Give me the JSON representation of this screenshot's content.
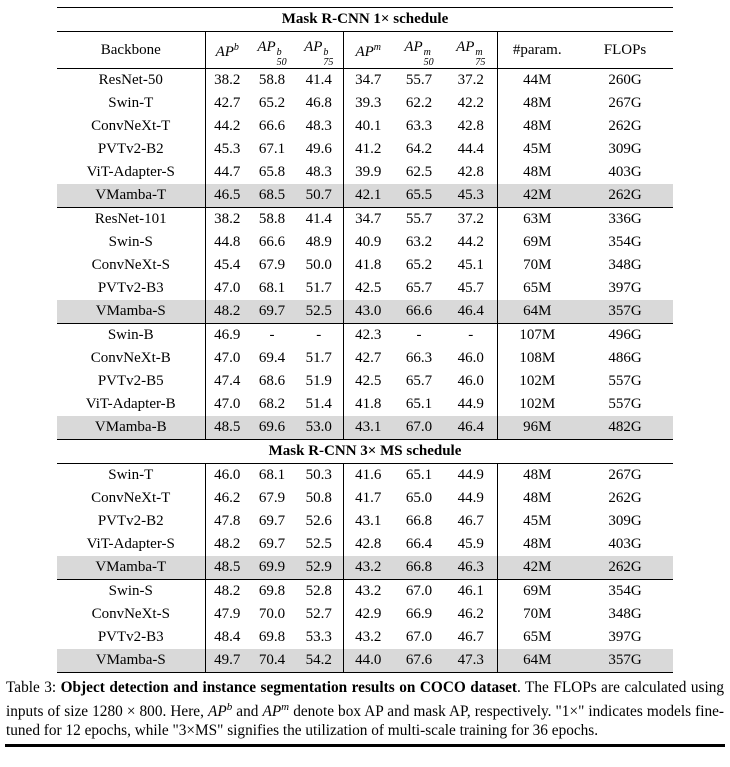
{
  "table": {
    "vline_columns": [
      1,
      4,
      7
    ],
    "highlight_color": "#d9d9d9",
    "sections": [
      {
        "title": "Mask R-CNN 1× schedule",
        "columns": [
          {
            "text": "Backbone"
          },
          {
            "base": "AP",
            "sup": "b",
            "sub": ""
          },
          {
            "base": "AP",
            "sup": "b",
            "sub": "50"
          },
          {
            "base": "AP",
            "sup": "b",
            "sub": "75"
          },
          {
            "base": "AP",
            "sup": "m",
            "sub": ""
          },
          {
            "base": "AP",
            "sup": "m",
            "sub": "50"
          },
          {
            "base": "AP",
            "sup": "m",
            "sub": "75"
          },
          {
            "text": "#param."
          },
          {
            "text": "FLOPs"
          }
        ],
        "groups": [
          {
            "rows": [
              {
                "backbone": "ResNet-50",
                "values": [
                  "38.2",
                  "58.8",
                  "41.4",
                  "34.7",
                  "55.7",
                  "37.2",
                  "44M",
                  "260G"
                ],
                "highlight": false
              },
              {
                "backbone": "Swin-T",
                "values": [
                  "42.7",
                  "65.2",
                  "46.8",
                  "39.3",
                  "62.2",
                  "42.2",
                  "48M",
                  "267G"
                ],
                "highlight": false
              },
              {
                "backbone": "ConvNeXt-T",
                "values": [
                  "44.2",
                  "66.6",
                  "48.3",
                  "40.1",
                  "63.3",
                  "42.8",
                  "48M",
                  "262G"
                ],
                "highlight": false
              },
              {
                "backbone": "PVTv2-B2",
                "values": [
                  "45.3",
                  "67.1",
                  "49.6",
                  "41.2",
                  "64.2",
                  "44.4",
                  "45M",
                  "309G"
                ],
                "highlight": false
              },
              {
                "backbone": "ViT-Adapter-S",
                "values": [
                  "44.7",
                  "65.8",
                  "48.3",
                  "39.9",
                  "62.5",
                  "42.8",
                  "48M",
                  "403G"
                ],
                "highlight": false
              },
              {
                "backbone": "VMamba-T",
                "values": [
                  "46.5",
                  "68.5",
                  "50.7",
                  "42.1",
                  "65.5",
                  "45.3",
                  "42M",
                  "262G"
                ],
                "highlight": true
              }
            ]
          },
          {
            "rows": [
              {
                "backbone": "ResNet-101",
                "values": [
                  "38.2",
                  "58.8",
                  "41.4",
                  "34.7",
                  "55.7",
                  "37.2",
                  "63M",
                  "336G"
                ],
                "highlight": false
              },
              {
                "backbone": "Swin-S",
                "values": [
                  "44.8",
                  "66.6",
                  "48.9",
                  "40.9",
                  "63.2",
                  "44.2",
                  "69M",
                  "354G"
                ],
                "highlight": false
              },
              {
                "backbone": "ConvNeXt-S",
                "values": [
                  "45.4",
                  "67.9",
                  "50.0",
                  "41.8",
                  "65.2",
                  "45.1",
                  "70M",
                  "348G"
                ],
                "highlight": false
              },
              {
                "backbone": "PVTv2-B3",
                "values": [
                  "47.0",
                  "68.1",
                  "51.7",
                  "42.5",
                  "65.7",
                  "45.7",
                  "65M",
                  "397G"
                ],
                "highlight": false
              },
              {
                "backbone": "VMamba-S",
                "values": [
                  "48.2",
                  "69.7",
                  "52.5",
                  "43.0",
                  "66.6",
                  "46.4",
                  "64M",
                  "357G"
                ],
                "highlight": true
              }
            ]
          },
          {
            "rows": [
              {
                "backbone": "Swin-B",
                "values": [
                  "46.9",
                  "-",
                  "-",
                  "42.3",
                  "-",
                  "-",
                  "107M",
                  "496G"
                ],
                "highlight": false
              },
              {
                "backbone": "ConvNeXt-B",
                "values": [
                  "47.0",
                  "69.4",
                  "51.7",
                  "42.7",
                  "66.3",
                  "46.0",
                  "108M",
                  "486G"
                ],
                "highlight": false
              },
              {
                "backbone": "PVTv2-B5",
                "values": [
                  "47.4",
                  "68.6",
                  "51.9",
                  "42.5",
                  "65.7",
                  "46.0",
                  "102M",
                  "557G"
                ],
                "highlight": false
              },
              {
                "backbone": "ViT-Adapter-B",
                "values": [
                  "47.0",
                  "68.2",
                  "51.4",
                  "41.8",
                  "65.1",
                  "44.9",
                  "102M",
                  "557G"
                ],
                "highlight": false
              },
              {
                "backbone": "VMamba-B",
                "values": [
                  "48.5",
                  "69.6",
                  "53.0",
                  "43.1",
                  "67.0",
                  "46.4",
                  "96M",
                  "482G"
                ],
                "highlight": true
              }
            ]
          }
        ]
      },
      {
        "title": "Mask R-CNN 3× MS schedule",
        "groups": [
          {
            "rows": [
              {
                "backbone": "Swin-T",
                "values": [
                  "46.0",
                  "68.1",
                  "50.3",
                  "41.6",
                  "65.1",
                  "44.9",
                  "48M",
                  "267G"
                ],
                "highlight": false
              },
              {
                "backbone": "ConvNeXt-T",
                "values": [
                  "46.2",
                  "67.9",
                  "50.8",
                  "41.7",
                  "65.0",
                  "44.9",
                  "48M",
                  "262G"
                ],
                "highlight": false
              },
              {
                "backbone": "PVTv2-B2",
                "values": [
                  "47.8",
                  "69.7",
                  "52.6",
                  "43.1",
                  "66.8",
                  "46.7",
                  "45M",
                  "309G"
                ],
                "highlight": false
              },
              {
                "backbone": "ViT-Adapter-S",
                "values": [
                  "48.2",
                  "69.7",
                  "52.5",
                  "42.8",
                  "66.4",
                  "45.9",
                  "48M",
                  "403G"
                ],
                "highlight": false
              },
              {
                "backbone": "VMamba-T",
                "values": [
                  "48.5",
                  "69.9",
                  "52.9",
                  "43.2",
                  "66.8",
                  "46.3",
                  "42M",
                  "262G"
                ],
                "highlight": true
              }
            ]
          },
          {
            "rows": [
              {
                "backbone": "Swin-S",
                "values": [
                  "48.2",
                  "69.8",
                  "52.8",
                  "43.2",
                  "67.0",
                  "46.1",
                  "69M",
                  "354G"
                ],
                "highlight": false
              },
              {
                "backbone": "ConvNeXt-S",
                "values": [
                  "47.9",
                  "70.0",
                  "52.7",
                  "42.9",
                  "66.9",
                  "46.2",
                  "70M",
                  "348G"
                ],
                "highlight": false
              },
              {
                "backbone": "PVTv2-B3",
                "values": [
                  "48.4",
                  "69.8",
                  "53.3",
                  "43.2",
                  "67.0",
                  "46.7",
                  "65M",
                  "397G"
                ],
                "highlight": false
              },
              {
                "backbone": "VMamba-S",
                "values": [
                  "49.7",
                  "70.4",
                  "54.2",
                  "44.0",
                  "67.6",
                  "47.3",
                  "64M",
                  "357G"
                ],
                "highlight": true
              }
            ]
          }
        ]
      }
    ]
  },
  "caption": {
    "segments": [
      {
        "text": "Table 3: ",
        "bold": false
      },
      {
        "text": "Object detection and instance segmentation results on COCO dataset",
        "bold": true
      },
      {
        "text": ". The FLOPs are calculated using inputs of size 1280 × 800. Here, ",
        "bold": false
      },
      {
        "text": "AP",
        "italic": true
      },
      {
        "text": "b",
        "sup": true,
        "italic": true
      },
      {
        "text": " and ",
        "bold": false
      },
      {
        "text": "AP",
        "italic": true
      },
      {
        "text": "m",
        "sup": true,
        "italic": true
      },
      {
        "text": " denote box AP and mask AP, respectively. \"1×\" indicates models fine-tuned for 12 epochs, while \"3×MS\" signifies the utilization of multi-scale training for 36 epochs.",
        "bold": false
      }
    ]
  }
}
